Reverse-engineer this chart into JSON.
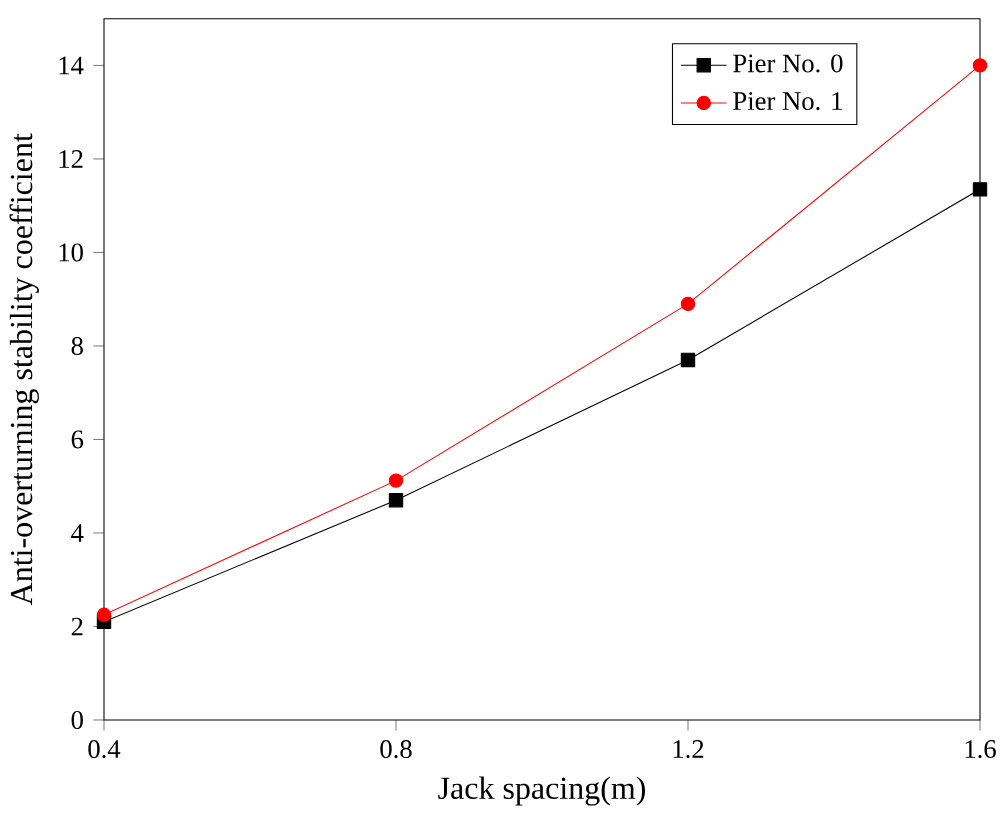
{
  "chart_data": {
    "type": "line",
    "xlabel": "Jack spacing(m)",
    "ylabel": "Anti-overturning stability coefficient",
    "x": [
      0.4,
      0.8,
      1.2,
      1.6
    ],
    "series": [
      {
        "name": "Pier No. 0",
        "color": "#000000",
        "marker": "square",
        "values": [
          2.1,
          4.7,
          7.7,
          11.35
        ]
      },
      {
        "name": "Pier No. 1",
        "color": "#ff0000",
        "marker": "circle",
        "values": [
          2.25,
          5.12,
          8.9,
          14.0
        ]
      }
    ],
    "xlim": [
      0.4,
      1.6
    ],
    "xticks": [
      0.4,
      0.8,
      1.2,
      1.6
    ],
    "ylim": [
      0,
      15
    ],
    "yticks": [
      0,
      2,
      4,
      6,
      8,
      10,
      12,
      14
    ],
    "grid": false,
    "legend": "top right"
  }
}
